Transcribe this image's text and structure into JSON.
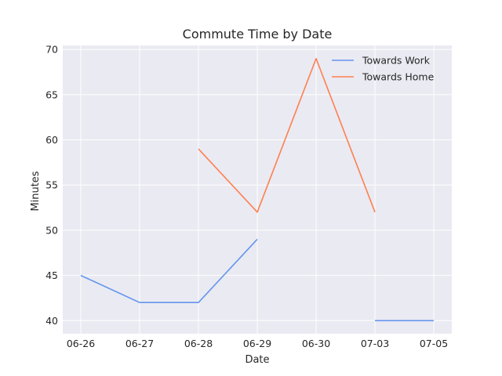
{
  "chart_data": {
    "type": "line",
    "title": "Commute Time by Date",
    "xlabel": "Date",
    "ylabel": "Minutes",
    "categories": [
      "06-26",
      "06-27",
      "06-28",
      "06-29",
      "06-30",
      "07-03",
      "07-05"
    ],
    "series": [
      {
        "name": "Towards Work",
        "color": "#6495ED",
        "values": [
          45,
          42,
          42,
          49,
          null,
          40,
          40
        ]
      },
      {
        "name": "Towards Home",
        "color": "#FF7F50",
        "values": [
          null,
          null,
          59,
          52,
          69,
          52,
          null
        ]
      }
    ],
    "ylim": [
      38.55,
      70.45
    ],
    "yticks": [
      40,
      45,
      50,
      55,
      60,
      65,
      70
    ],
    "grid": true,
    "legend_position": "top-right",
    "background": "#EAEAF2"
  }
}
